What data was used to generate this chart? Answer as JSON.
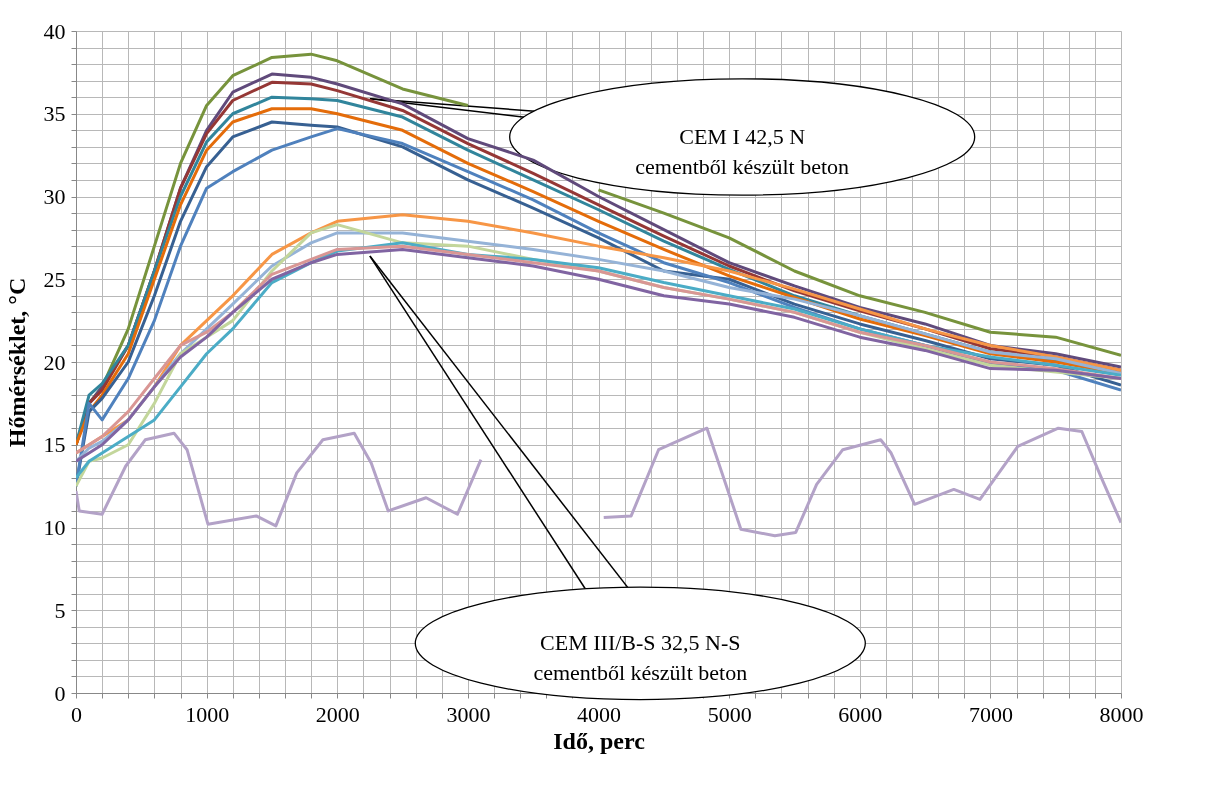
{
  "chart_data": {
    "type": "line",
    "xlabel": "Idő, perc",
    "ylabel": "Hőmérséklet, °C",
    "x": [
      0,
      100,
      200,
      400,
      600,
      800,
      1000,
      1200,
      1500,
      1800,
      2000,
      2500,
      3000,
      3500,
      4000,
      4500,
      5000,
      5500,
      6000,
      6500,
      7000,
      7500,
      8000
    ],
    "series": [
      {
        "color": "#b3a2c7",
        "x": [
          0,
          25,
          200,
          380,
          530,
          750,
          850,
          1010,
          1380,
          1530,
          1690,
          1890,
          2130,
          2260,
          2390,
          2680,
          2920,
          3100,
          3300,
          3600,
          3900,
          4040,
          4250,
          4460,
          4830,
          5090,
          5350,
          5510,
          5670,
          5870,
          6160,
          6240,
          6420,
          6720,
          6920,
          7210,
          7520,
          7700,
          7850,
          8000
        ],
        "values": [
          12.2,
          11,
          10.8,
          13.7,
          15.3,
          15.7,
          14.7,
          10.2,
          10.7,
          10.1,
          13.3,
          15.3,
          15.7,
          13.9,
          11,
          11.8,
          10.8,
          14.1,
          null,
          null,
          null,
          10.6,
          10.7,
          14.7,
          16,
          9.9,
          9.5,
          9.7,
          12.6,
          14.7,
          15.3,
          14.5,
          11.4,
          12.3,
          11.7,
          14.9,
          16,
          15.8,
          13,
          10.3
        ]
      },
      {
        "color": "#77933c",
        "values": [
          15,
          17.5,
          18.5,
          22,
          27,
          32,
          35.5,
          37.3,
          38.4,
          38.6,
          38.2,
          36.5,
          35.5,
          null,
          30.4,
          29,
          27.5,
          25.5,
          24,
          23,
          21.8,
          21.5,
          20.4
        ]
      },
      {
        "color": "#604a7b",
        "values": [
          15,
          17.5,
          18.5,
          21,
          25.5,
          30.5,
          34,
          36.3,
          37.4,
          37.2,
          36.8,
          35.6,
          33.5,
          32.2,
          30,
          28,
          26,
          24.6,
          23.3,
          22.3,
          21,
          20.5,
          19.7
        ]
      },
      {
        "color": "#953735",
        "values": [
          15,
          17.5,
          18.3,
          21,
          25.5,
          30.5,
          33.8,
          35.8,
          36.9,
          36.8,
          36.4,
          35.2,
          33.2,
          31.4,
          29.5,
          27.6,
          25.8,
          24.3,
          23.1,
          22,
          20.8,
          20.3,
          19.5
        ]
      },
      {
        "color": "#31859c",
        "values": [
          15,
          18,
          18.7,
          21,
          25.5,
          30,
          33.3,
          35,
          36,
          35.9,
          35.8,
          34.8,
          32.8,
          31,
          29.2,
          27.3,
          25.6,
          24,
          22.8,
          21.7,
          20.6,
          20.1,
          19.3
        ]
      },
      {
        "color": "#e46c0a",
        "values": [
          15,
          17,
          18,
          20.5,
          25,
          29.5,
          32.8,
          34.5,
          35.3,
          35.3,
          35,
          34,
          32,
          30.3,
          28.5,
          26.8,
          25.2,
          23.9,
          22.6,
          21.6,
          20.5,
          20,
          19.3
        ]
      },
      {
        "color": "#376092",
        "values": [
          12.5,
          17,
          17.8,
          20,
          24,
          28.5,
          31.8,
          33.6,
          34.5,
          34.3,
          34.2,
          33,
          31,
          29.3,
          27.5,
          25.5,
          25,
          23.5,
          22.3,
          21.3,
          20.2,
          19.8,
          18.6
        ]
      },
      {
        "color": "#4f81bd",
        "values": [
          12.5,
          17.5,
          16.5,
          19,
          22.5,
          27,
          30.5,
          31.5,
          32.8,
          33.6,
          34.1,
          33.2,
          31.5,
          29.8,
          27.8,
          26,
          24.8,
          23.3,
          22,
          21,
          19.9,
          19.5,
          18.3
        ]
      },
      {
        "color": "#f79646",
        "values": [
          14.5,
          15,
          15.5,
          16.5,
          18.5,
          21,
          22.5,
          24,
          26.5,
          27.8,
          28.5,
          28.9,
          28.5,
          27.8,
          27,
          26.3,
          25.5,
          24.4,
          23.2,
          22,
          21,
          20.3,
          19.5
        ]
      },
      {
        "color": "#95b3d7",
        "values": [
          14,
          14.8,
          15.2,
          16.5,
          18.5,
          20.5,
          22,
          23.5,
          25.8,
          27.2,
          27.8,
          27.8,
          27.3,
          26.8,
          26.2,
          25.5,
          24.5,
          23.8,
          22.8,
          21.7,
          20.6,
          20.2,
          19.3
        ]
      },
      {
        "color": "#c3d69b",
        "values": [
          12.5,
          14,
          14.2,
          15,
          17.5,
          20.5,
          21.5,
          22.5,
          25.5,
          27.8,
          28.3,
          27.2,
          27,
          26.2,
          25.5,
          24.5,
          23.8,
          23,
          21.8,
          20.8,
          19.8,
          19.4,
          19
        ]
      },
      {
        "color": "#4bacc6",
        "values": [
          13,
          14,
          14.5,
          15.5,
          16.5,
          18.5,
          20.5,
          22,
          24.8,
          26,
          26.7,
          27.2,
          26.5,
          26.2,
          25.7,
          24.8,
          24,
          23.2,
          22,
          21,
          20.3,
          19.8,
          19.2
        ]
      },
      {
        "color": "#d99694",
        "values": [
          14.5,
          15,
          15.5,
          17,
          19,
          21,
          21.8,
          23,
          25.3,
          26.2,
          26.8,
          27,
          26.5,
          26,
          25.5,
          24.5,
          23.8,
          23,
          21.8,
          21,
          20,
          19.6,
          19
        ]
      },
      {
        "color": "#8064a2",
        "values": [
          14,
          14.5,
          15,
          16.5,
          18.5,
          20.3,
          21.5,
          23,
          25,
          26,
          26.5,
          26.8,
          26.3,
          25.8,
          25,
          24,
          23.5,
          22.7,
          21.5,
          20.7,
          19.6,
          19.5,
          19
        ]
      }
    ],
    "xlim": [
      0,
      8000
    ],
    "ylim": [
      0,
      40
    ],
    "xticks": [
      0,
      {
        "value": 200,
        "label": null
      },
      {
        "value": 400,
        "label": null
      },
      {
        "value": 600,
        "label": null
      },
      {
        "value": 800,
        "label": null
      },
      1000,
      {
        "value": 1200,
        "label": null
      },
      {
        "value": 1400,
        "label": null
      },
      {
        "value": 1600,
        "label": null
      },
      {
        "value": 1800,
        "label": null
      },
      2000,
      {
        "value": 2200,
        "label": null
      },
      {
        "value": 2400,
        "label": null
      },
      {
        "value": 2600,
        "label": null
      },
      {
        "value": 2800,
        "label": null
      },
      3000,
      {
        "value": 3200,
        "label": null
      },
      {
        "value": 3400,
        "label": null
      },
      {
        "value": 3600,
        "label": null
      },
      {
        "value": 3800,
        "label": null
      },
      4000,
      {
        "value": 4200,
        "label": null
      },
      {
        "value": 4400,
        "label": null
      },
      {
        "value": 4600,
        "label": null
      },
      {
        "value": 4800,
        "label": null
      },
      5000,
      {
        "value": 5200,
        "label": null
      },
      {
        "value": 5400,
        "label": null
      },
      {
        "value": 5600,
        "label": null
      },
      {
        "value": 5800,
        "label": null
      },
      6000,
      {
        "value": 6200,
        "label": null
      },
      {
        "value": 6400,
        "label": null
      },
      {
        "value": 6600,
        "label": null
      },
      {
        "value": 6800,
        "label": null
      },
      7000,
      {
        "value": 7200,
        "label": null
      },
      {
        "value": 7400,
        "label": null
      },
      {
        "value": 7600,
        "label": null
      },
      {
        "value": 7800,
        "label": null
      },
      8000
    ],
    "yticks": [
      0,
      {
        "value": 1,
        "label": null
      },
      {
        "value": 2,
        "label": null
      },
      {
        "value": 3,
        "label": null
      },
      {
        "value": 4,
        "label": null
      },
      5,
      {
        "value": 6,
        "label": null
      },
      {
        "value": 7,
        "label": null
      },
      {
        "value": 8,
        "label": null
      },
      {
        "value": 9,
        "label": null
      },
      10,
      {
        "value": 11,
        "label": null
      },
      {
        "value": 12,
        "label": null
      },
      {
        "value": 13,
        "label": null
      },
      {
        "value": 14,
        "label": null
      },
      15,
      {
        "value": 16,
        "label": null
      },
      {
        "value": 17,
        "label": null
      },
      {
        "value": 18,
        "label": null
      },
      {
        "value": 19,
        "label": null
      },
      20,
      {
        "value": 21,
        "label": null
      },
      {
        "value": 22,
        "label": null
      },
      {
        "value": 23,
        "label": null
      },
      {
        "value": 24,
        "label": null
      },
      25,
      {
        "value": 26,
        "label": null
      },
      {
        "value": 27,
        "label": null
      },
      {
        "value": 28,
        "label": null
      },
      {
        "value": 29,
        "label": null
      },
      30,
      {
        "value": 31,
        "label": null
      },
      {
        "value": 32,
        "label": null
      },
      {
        "value": 33,
        "label": null
      },
      {
        "value": 34,
        "label": null
      },
      35,
      {
        "value": 36,
        "label": null
      },
      {
        "value": 37,
        "label": null
      },
      {
        "value": 38,
        "label": null
      },
      {
        "value": 39,
        "label": null
      },
      40
    ],
    "grid": true,
    "legend": false,
    "marker": "none",
    "line_style": "solid",
    "annotations": [
      {
        "text": "CEM I 42,5 N\ncementből készült beton",
        "x": 2250,
        "y": 35.9
      },
      {
        "text": "CEM III/B-S 32,5 N-S\ncementből készült beton",
        "x": 2250,
        "y": 26.4
      }
    ]
  }
}
